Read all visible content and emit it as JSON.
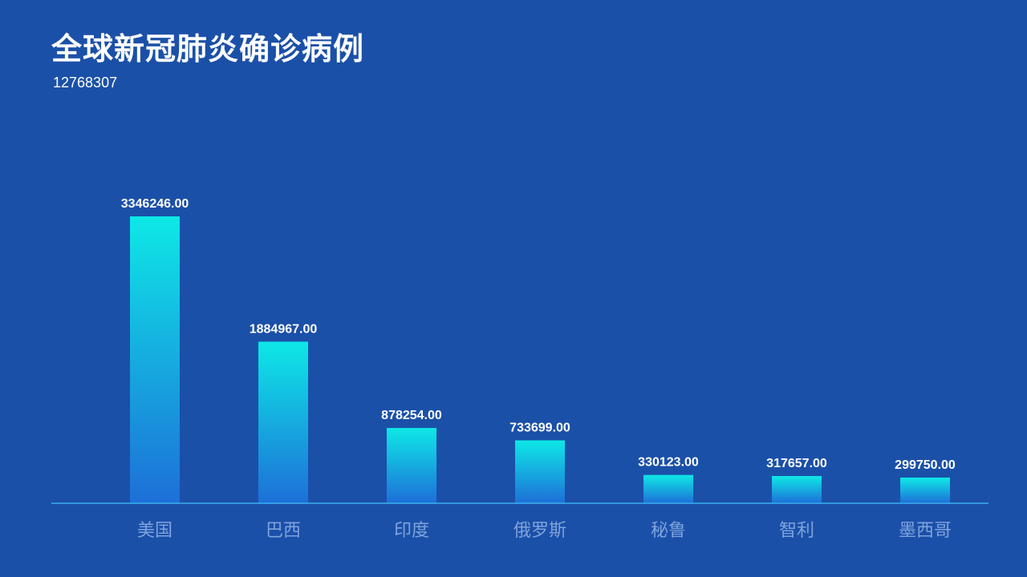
{
  "header": {
    "title": "全球新冠肺炎确诊病例",
    "total": "12768307"
  },
  "colors": {
    "background": "#1b50a8",
    "bar_top": "#0ee8e6",
    "bar_bottom": "#1d6fd8",
    "axis_line": "#3bb0f0",
    "label_text": "#ffffff",
    "category_text": "#7fa3dc"
  },
  "chart_data": {
    "type": "bar",
    "title": "全球新冠肺炎确诊病例",
    "categories": [
      "美国",
      "巴西",
      "印度",
      "俄罗斯",
      "秘鲁",
      "智利",
      "墨西哥"
    ],
    "values": [
      3346246.0,
      1884967.0,
      878254.0,
      733699.0,
      330123.0,
      317657.0,
      299750.0
    ],
    "value_labels": [
      "3346246.00",
      "1884967.00",
      "878254.00",
      "733699.00",
      "330123.00",
      "317657.00",
      "299750.00"
    ],
    "xlabel": "",
    "ylabel": "",
    "ylim": [
      0,
      3500000
    ],
    "grid": false,
    "legend": "none"
  }
}
